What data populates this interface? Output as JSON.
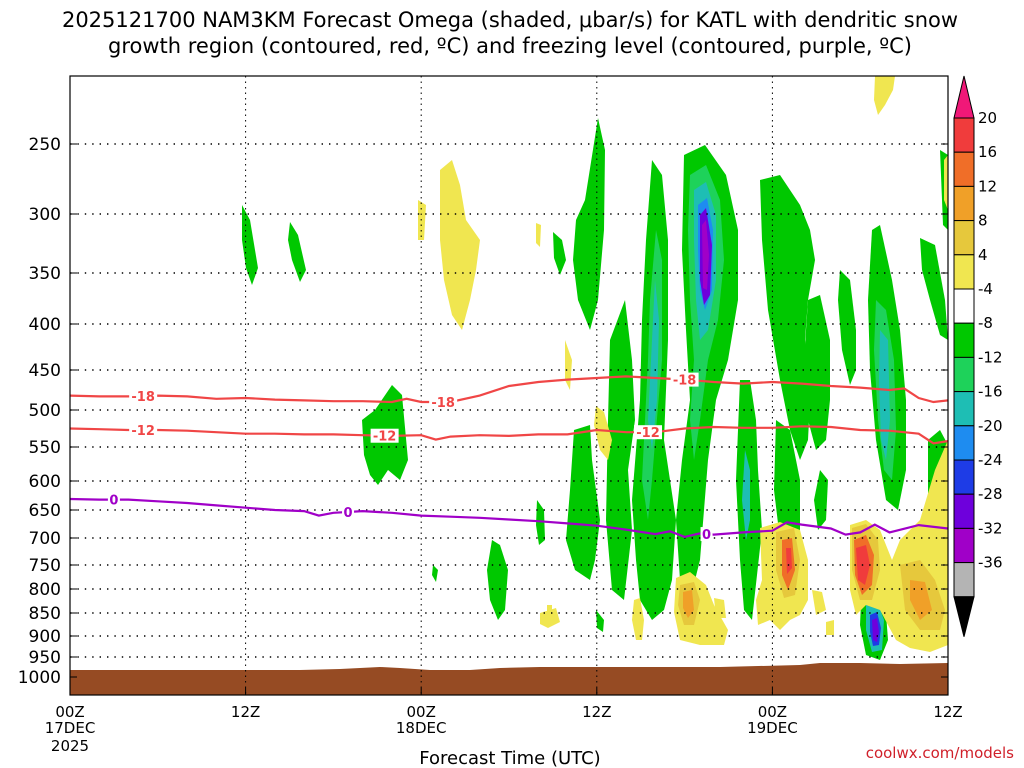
{
  "title_line1": "2025121700 NAM3KM Forecast Omega (shaded, μbar/s) for KATL with dendritic snow",
  "title_line2": "growth region (contoured, red, ºC) and freezing level (contoured, purple, ºC)",
  "credit": "coolwx.com/models",
  "chart_data": {
    "type": "time-height cross section",
    "title": "2025121700 NAM3KM Forecast Omega (shaded, μbar/s) for KATL with dendritic snow growth region (contoured, red, ºC) and freezing level (contoured, purple, ºC)",
    "xlabel": "Forecast Time (UTC)",
    "ylabel": "",
    "x_range_hours": [
      0,
      60
    ],
    "y_range_hpa": [
      1000,
      200
    ],
    "y_ticks": [
      "250",
      "300",
      "350",
      "400",
      "450",
      "500",
      "550",
      "600",
      "650",
      "700",
      "750",
      "800",
      "850",
      "900",
      "950",
      "1000"
    ],
    "y_tick_values": [
      250,
      300,
      350,
      400,
      450,
      500,
      550,
      600,
      650,
      700,
      750,
      800,
      850,
      900,
      950,
      1000
    ],
    "x_ticks": [
      {
        "hour": 0,
        "label1": "00Z",
        "label2": "17DEC",
        "label3": "2025"
      },
      {
        "hour": 12,
        "label1": "12Z",
        "label2": "",
        "label3": ""
      },
      {
        "hour": 24,
        "label1": "00Z",
        "label2": "18DEC",
        "label3": ""
      },
      {
        "hour": 36,
        "label1": "12Z",
        "label2": "",
        "label3": ""
      },
      {
        "hour": 48,
        "label1": "00Z",
        "label2": "19DEC",
        "label3": ""
      },
      {
        "hour": 60,
        "label1": "12Z",
        "label2": "",
        "label3": ""
      }
    ],
    "colorbar": {
      "labels": [
        "20",
        "16",
        "12",
        "8",
        "4",
        "-4",
        "-8",
        "-12",
        "-16",
        "-20",
        "-24",
        "-28",
        "-32",
        "-36"
      ],
      "colors": [
        "#f01878",
        "#f03c3c",
        "#f06e28",
        "#f0a028",
        "#e6c83c",
        "#f0e650",
        "#ffffff",
        "#00c800",
        "#1ed25a",
        "#1ebeb4",
        "#1e8cf0",
        "#1e3ce6",
        "#6e00dc",
        "#a000c8",
        "#b4b4b4",
        "#000000"
      ]
    },
    "contours": [
      {
        "name": "-18 C isotherm",
        "color": "#f04646",
        "label": "-18",
        "points": [
          [
            0,
            482
          ],
          [
            2,
            483
          ],
          [
            4,
            483
          ],
          [
            6,
            482
          ],
          [
            8,
            483
          ],
          [
            10,
            486
          ],
          [
            12,
            485
          ],
          [
            14,
            487
          ],
          [
            16,
            488
          ],
          [
            18,
            489
          ],
          [
            20,
            489
          ],
          [
            22,
            490
          ],
          [
            23,
            486
          ],
          [
            24,
            490
          ],
          [
            26,
            490
          ],
          [
            28,
            482
          ],
          [
            30,
            470
          ],
          [
            32,
            465
          ],
          [
            34,
            462
          ],
          [
            36,
            460
          ],
          [
            38,
            458
          ],
          [
            40,
            460
          ],
          [
            42,
            462
          ],
          [
            44,
            465
          ],
          [
            46,
            467
          ],
          [
            48,
            465
          ],
          [
            50,
            467
          ],
          [
            52,
            470
          ],
          [
            54,
            472
          ],
          [
            56,
            475
          ],
          [
            57,
            473
          ],
          [
            58,
            485
          ],
          [
            59,
            490
          ],
          [
            60,
            488
          ]
        ]
      },
      {
        "name": "-12 C isotherm",
        "color": "#f04646",
        "label": "-12",
        "points": [
          [
            0,
            525
          ],
          [
            2,
            526
          ],
          [
            4,
            527
          ],
          [
            6,
            527
          ],
          [
            8,
            528
          ],
          [
            10,
            530
          ],
          [
            12,
            532
          ],
          [
            14,
            532
          ],
          [
            16,
            533
          ],
          [
            18,
            533
          ],
          [
            20,
            534
          ],
          [
            22,
            535
          ],
          [
            24,
            534
          ],
          [
            25,
            540
          ],
          [
            26,
            536
          ],
          [
            28,
            534
          ],
          [
            30,
            535
          ],
          [
            32,
            533
          ],
          [
            34,
            533
          ],
          [
            36,
            527
          ],
          [
            38,
            530
          ],
          [
            40,
            530
          ],
          [
            42,
            525
          ],
          [
            44,
            523
          ],
          [
            46,
            524
          ],
          [
            48,
            524
          ],
          [
            50,
            522
          ],
          [
            52,
            523
          ],
          [
            54,
            527
          ],
          [
            56,
            528
          ],
          [
            58,
            532
          ],
          [
            59,
            545
          ],
          [
            60,
            542
          ]
        ]
      },
      {
        "name": "0 C isotherm (freezing level)",
        "color": "#a000c8",
        "label": "0",
        "points": [
          [
            0,
            631
          ],
          [
            2,
            632
          ],
          [
            4,
            632
          ],
          [
            6,
            635
          ],
          [
            8,
            638
          ],
          [
            10,
            642
          ],
          [
            12,
            646
          ],
          [
            14,
            650
          ],
          [
            16,
            652
          ],
          [
            17,
            660
          ],
          [
            18,
            655
          ],
          [
            20,
            652
          ],
          [
            22,
            655
          ],
          [
            24,
            660
          ],
          [
            26,
            662
          ],
          [
            28,
            664
          ],
          [
            30,
            667
          ],
          [
            32,
            670
          ],
          [
            34,
            674
          ],
          [
            36,
            678
          ],
          [
            38,
            685
          ],
          [
            40,
            693
          ],
          [
            41,
            688
          ],
          [
            42,
            698
          ],
          [
            43,
            692
          ],
          [
            44,
            694
          ],
          [
            46,
            690
          ],
          [
            48,
            687
          ],
          [
            49,
            672
          ],
          [
            50,
            676
          ],
          [
            52,
            683
          ],
          [
            53,
            694
          ],
          [
            54,
            690
          ],
          [
            55,
            676
          ],
          [
            56,
            690
          ],
          [
            58,
            677
          ],
          [
            60,
            683
          ]
        ]
      }
    ],
    "omega_features": [
      {
        "kind": "ascent",
        "hour_center": 43.6,
        "p_center": 345,
        "min_value": -32,
        "desc": "strongest upward motion core"
      },
      {
        "kind": "ascent",
        "hour_center": 55.1,
        "p_center": 895,
        "min_value": -28,
        "desc": "low-level upward motion core"
      },
      {
        "kind": "descent",
        "hour_center": 54.6,
        "p_center": 765,
        "max_value": 16,
        "desc": "low-level subsidence maximum"
      },
      {
        "kind": "descent",
        "hour_center": 48.7,
        "p_center": 735,
        "max_value": 16,
        "desc": "low-level subsidence maximum"
      }
    ]
  }
}
